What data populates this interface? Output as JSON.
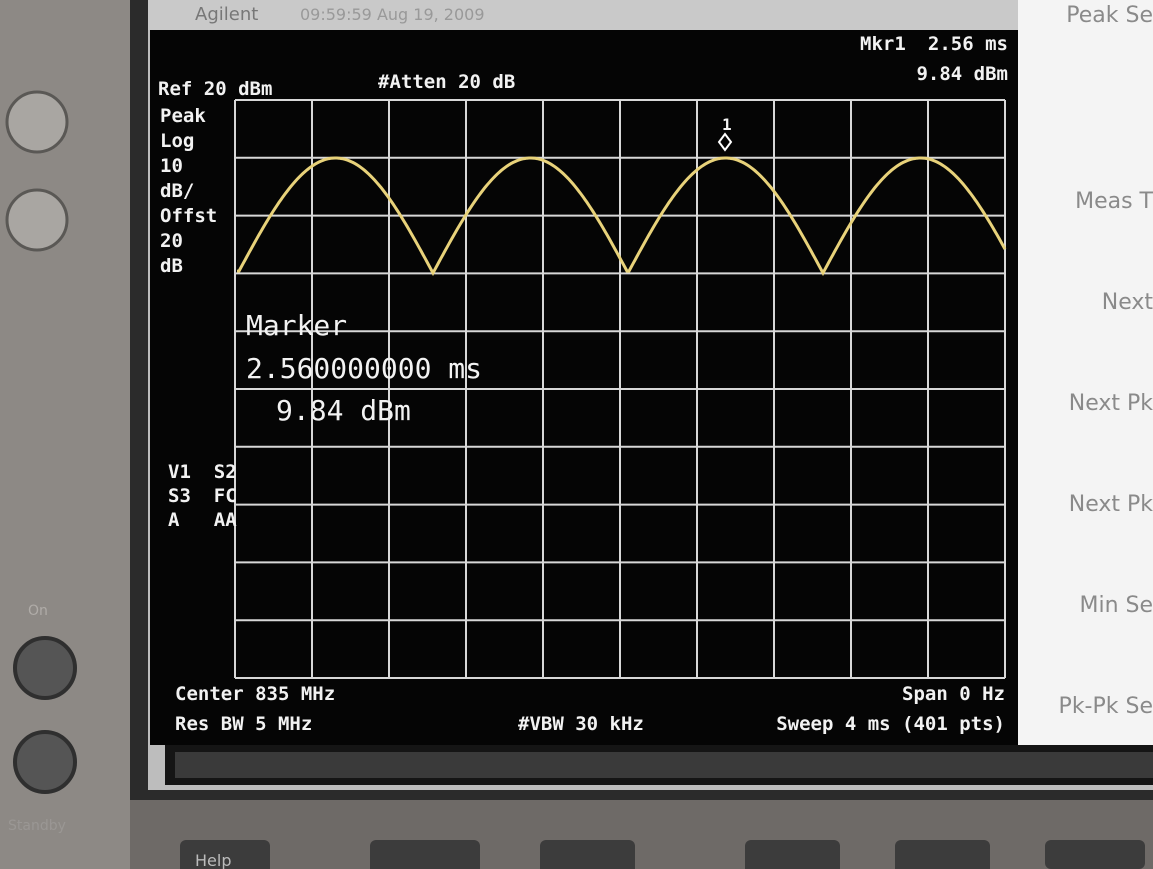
{
  "header": {
    "brand": "Agilent",
    "timestamp": "09:59:59 Aug 19, 2009"
  },
  "marker_readout": {
    "label": "Mkr1",
    "time": "2.56 ms",
    "level": "9.84 dBm"
  },
  "ref_level": "Ref 20 dBm",
  "attenuation": "#Atten 20 dB",
  "left_annotations": [
    "Peak",
    "Log",
    "10",
    "dB/",
    "Offst",
    "20",
    "dB"
  ],
  "trace_flags": [
    "V1  S2",
    "S3  FC",
    "A   AA"
  ],
  "marker_box": {
    "title": "Marker",
    "time": "2.560000000 ms",
    "level": "9.84 dBm"
  },
  "marker_number": "1",
  "footer": {
    "center": "Center 835 MHz",
    "span": "Span 0 Hz",
    "res_bw": "Res BW 5 MHz",
    "vbw": "#VBW 30 kHz",
    "sweep": "Sweep 4 ms (401 pts)"
  },
  "softkeys": [
    "Peak Se",
    "Meas T",
    "Next",
    "Next Pk",
    "Next Pk",
    "Min Se",
    "Pk-Pk Se"
  ],
  "bezel": {
    "on": "On",
    "standby": "Standby",
    "help": "Help"
  }
}
